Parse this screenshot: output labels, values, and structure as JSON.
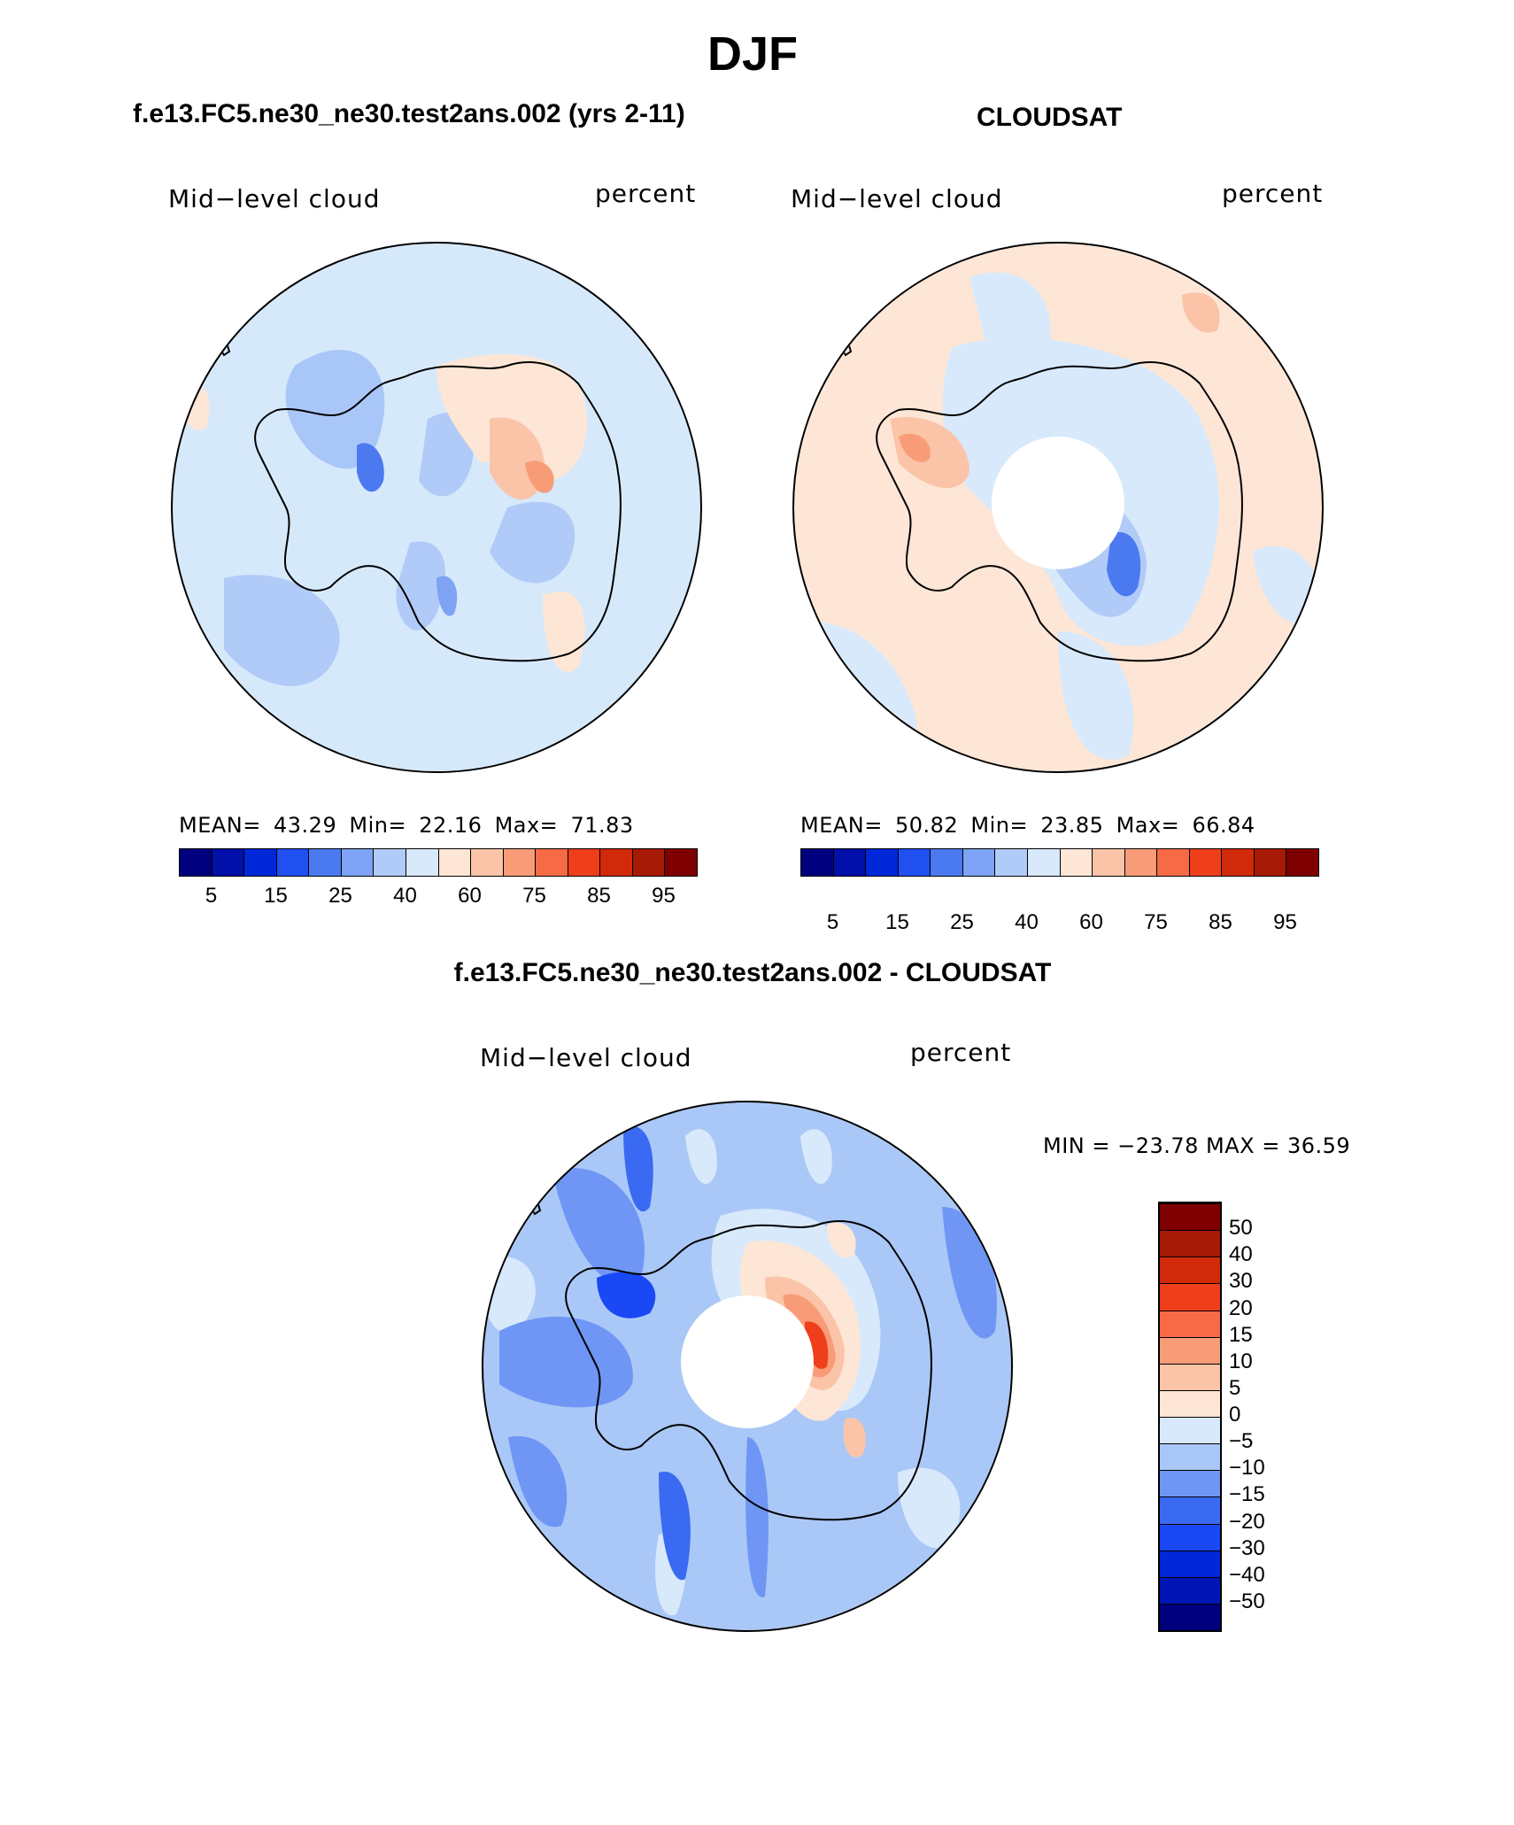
{
  "title": "DJF",
  "panels": [
    {
      "id": "model",
      "title": "f.e13.FC5.ne30_ne30.test2ans.002 (yrs 2-11)",
      "variable": "Mid−level cloud",
      "units": "percent",
      "stats": {
        "mean_label": "MEAN=",
        "mean": "43.29",
        "min_label": "Min=",
        "min": "22.16",
        "max_label": "Max=",
        "max": "71.83"
      },
      "background_color": "#d6e9fb",
      "has_polar_hole": false
    },
    {
      "id": "obs",
      "title": "CLOUDSAT",
      "variable": "Mid−level cloud",
      "units": "percent",
      "stats": {
        "mean_label": "MEAN=",
        "mean": "50.82",
        "min_label": "Min=",
        "min": "23.85",
        "max_label": "Max=",
        "max": "66.84"
      },
      "background_color": "#fde6d6",
      "has_polar_hole": true
    },
    {
      "id": "diff",
      "title": "f.e13.FC5.ne30_ne30.test2ans.002 - CLOUDSAT",
      "variable": "Mid−level cloud",
      "units": "percent",
      "stats_text": "MIN = −23.78 MAX =   36.59",
      "background_color": "#aac8f7",
      "has_polar_hole": true
    }
  ],
  "colorbar_abs": {
    "colors": [
      "#00007f",
      "#0010a8",
      "#0028d8",
      "#2050f0",
      "#4b7af0",
      "#7ea3f4",
      "#b1cbf8",
      "#d8e9fb",
      "#fde6d6",
      "#fbc4a8",
      "#f89c78",
      "#f66a45",
      "#ee3e1a",
      "#d12a0a",
      "#a71a06",
      "#7e0000"
    ],
    "tick_labels": [
      "5",
      "15",
      "25",
      "40",
      "60",
      "75",
      "85",
      "95"
    ]
  },
  "colorbar_diff": {
    "colors": [
      "#00007f",
      "#0016b4",
      "#0028d8",
      "#1a48f4",
      "#3a6af2",
      "#6f96f4",
      "#a9c6f8",
      "#d8e9fb",
      "#fde6d6",
      "#fbc4a8",
      "#f89c78",
      "#f66a45",
      "#ee3e1a",
      "#d12a0a",
      "#a71a06",
      "#7e0000"
    ],
    "tick_labels": [
      "−50",
      "−40",
      "−30",
      "−20",
      "−15",
      "−10",
      "−5",
      "0",
      "5",
      "10",
      "15",
      "20",
      "30",
      "40",
      "50"
    ]
  }
}
